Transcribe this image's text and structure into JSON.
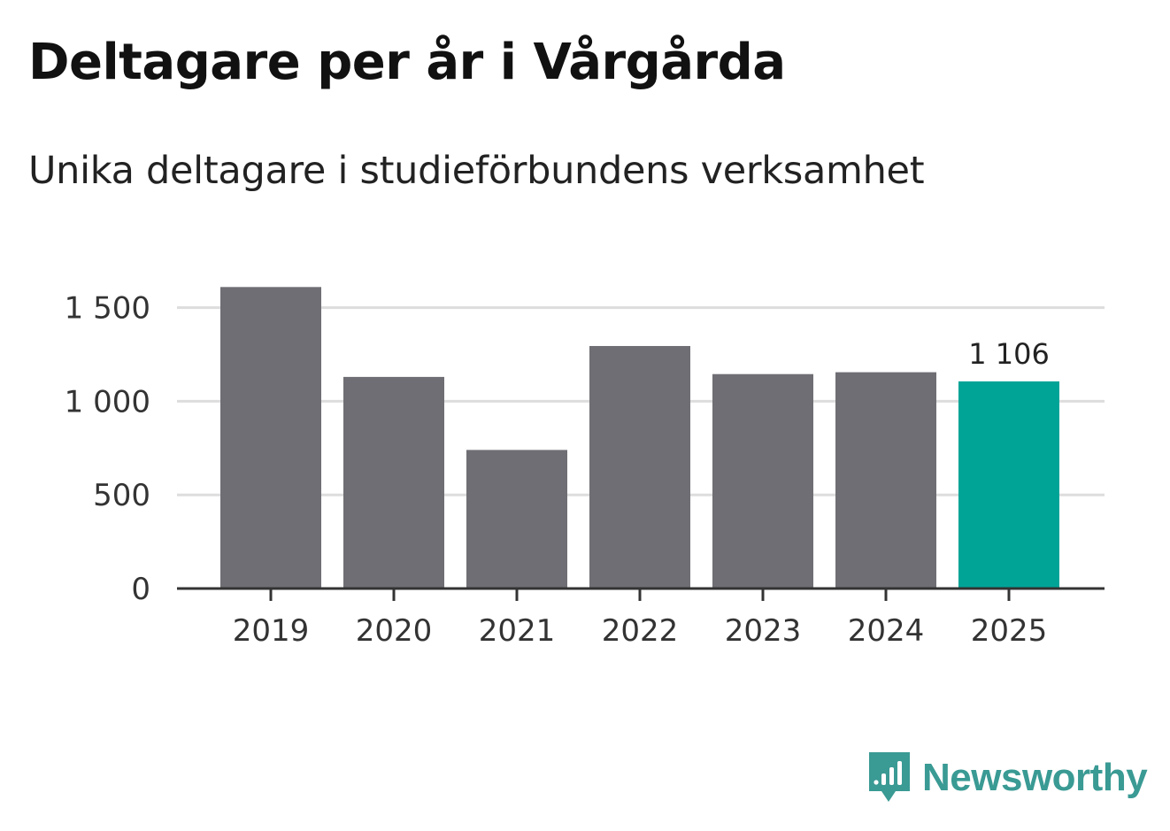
{
  "title": "Deltagare per år i Vårgårda",
  "subtitle": "Unika deltagare i studieförbundens verksamhet",
  "brand": {
    "name": "Newsworthy",
    "color": "#3a9a94"
  },
  "colors": {
    "bar": "#6f6e74",
    "highlight": "#00a497",
    "grid": "#dddddd",
    "axis": "#333333"
  },
  "chart_data": {
    "type": "bar",
    "title": "Deltagare per år i Vårgårda",
    "subtitle": "Unika deltagare i studieförbundens verksamhet",
    "xlabel": "",
    "ylabel": "",
    "categories": [
      "2019",
      "2020",
      "2021",
      "2022",
      "2023",
      "2024",
      "2025"
    ],
    "values": [
      1610,
      1130,
      740,
      1295,
      1145,
      1155,
      1106
    ],
    "highlight_index": 6,
    "value_labels": [
      null,
      null,
      null,
      null,
      null,
      null,
      "1 106"
    ],
    "ylim": [
      0,
      1600
    ],
    "yticks": [
      0,
      500,
      1000,
      1500
    ],
    "ytick_labels": [
      "0",
      "500",
      "1 000",
      "1 500"
    ],
    "grid": true,
    "legend": "none"
  }
}
